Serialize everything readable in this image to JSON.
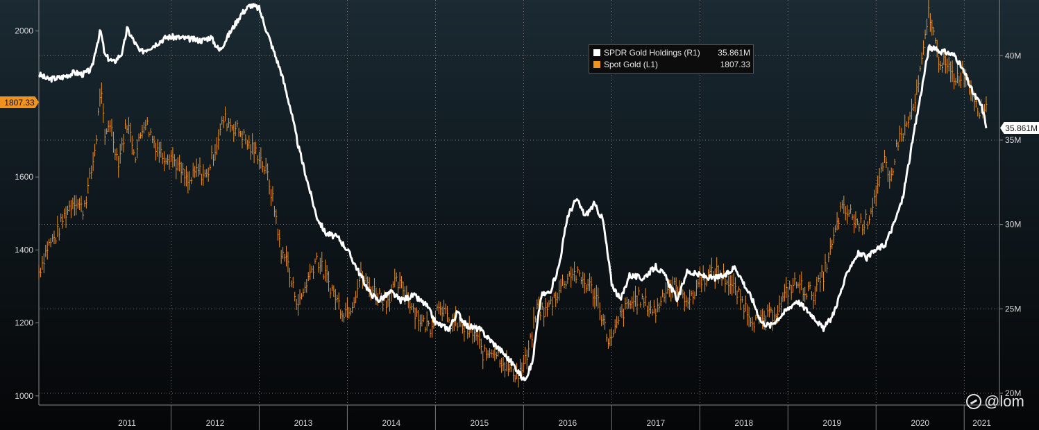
{
  "chart_data": {
    "type": "line",
    "x_label_years": [
      "2011",
      "2012",
      "2013",
      "2014",
      "2015",
      "2016",
      "2017",
      "2018",
      "2019",
      "2020",
      "2021"
    ],
    "left_axis": {
      "ticks": [
        1000,
        1200,
        1400,
        1600,
        2000
      ],
      "tick_labels": [
        "1000",
        "1200",
        "1400",
        "1600",
        "2000"
      ],
      "ylim": [
        975,
        2085
      ]
    },
    "right_axis": {
      "ticks": [
        20,
        25,
        30,
        35,
        40
      ],
      "tick_labels": [
        "20M",
        "25M",
        "30M",
        "35M",
        "40M"
      ],
      "ylim": [
        19.3,
        43.3
      ]
    },
    "series": [
      {
        "name": "SPDR Gold Holdings (R1)",
        "last": "35.861M",
        "axis": "right",
        "color": "#ffffff",
        "points": [
          [
            2010.5,
            38.9
          ],
          [
            2010.6,
            38.6
          ],
          [
            2010.75,
            38.7
          ],
          [
            2010.9,
            39.0
          ],
          [
            2011.0,
            38.9
          ],
          [
            2011.1,
            39.2
          ],
          [
            2011.15,
            40.5
          ],
          [
            2011.2,
            41.5
          ],
          [
            2011.25,
            40.0
          ],
          [
            2011.35,
            39.6
          ],
          [
            2011.45,
            40.2
          ],
          [
            2011.5,
            41.6
          ],
          [
            2011.65,
            40.2
          ],
          [
            2011.8,
            40.6
          ],
          [
            2011.95,
            41.1
          ],
          [
            2012.05,
            41.1
          ],
          [
            2012.2,
            41.0
          ],
          [
            2012.35,
            40.9
          ],
          [
            2012.45,
            41.1
          ],
          [
            2012.55,
            40.3
          ],
          [
            2012.65,
            41.2
          ],
          [
            2012.8,
            42.5
          ],
          [
            2012.9,
            43.0
          ],
          [
            2013.0,
            42.8
          ],
          [
            2013.05,
            42.0
          ],
          [
            2013.15,
            40.5
          ],
          [
            2013.25,
            39.0
          ],
          [
            2013.35,
            37.0
          ],
          [
            2013.45,
            34.5
          ],
          [
            2013.55,
            32.5
          ],
          [
            2013.65,
            30.5
          ],
          [
            2013.75,
            29.5
          ],
          [
            2013.9,
            29.2
          ],
          [
            2014.0,
            28.5
          ],
          [
            2014.1,
            27.5
          ],
          [
            2014.25,
            26.0
          ],
          [
            2014.35,
            25.5
          ],
          [
            2014.5,
            26.0
          ],
          [
            2014.6,
            25.5
          ],
          [
            2014.75,
            25.8
          ],
          [
            2014.9,
            25.2
          ],
          [
            2015.0,
            24.2
          ],
          [
            2015.15,
            23.8
          ],
          [
            2015.25,
            24.8
          ],
          [
            2015.35,
            24.0
          ],
          [
            2015.5,
            23.8
          ],
          [
            2015.65,
            23.0
          ],
          [
            2015.75,
            22.5
          ],
          [
            2015.9,
            21.6
          ],
          [
            2016.0,
            20.8
          ],
          [
            2016.05,
            21.2
          ],
          [
            2016.1,
            21.8
          ],
          [
            2016.2,
            25.8
          ],
          [
            2016.3,
            26.0
          ],
          [
            2016.4,
            27.5
          ],
          [
            2016.5,
            30.5
          ],
          [
            2016.6,
            31.5
          ],
          [
            2016.7,
            30.5
          ],
          [
            2016.8,
            31.2
          ],
          [
            2016.9,
            30.3
          ],
          [
            2017.0,
            26.5
          ],
          [
            2017.1,
            25.5
          ],
          [
            2017.2,
            27.0
          ],
          [
            2017.35,
            26.8
          ],
          [
            2017.5,
            27.5
          ],
          [
            2017.6,
            27.0
          ],
          [
            2017.75,
            25.5
          ],
          [
            2017.85,
            27.2
          ],
          [
            2018.0,
            27.0
          ],
          [
            2018.15,
            26.8
          ],
          [
            2018.3,
            27.0
          ],
          [
            2018.4,
            27.5
          ],
          [
            2018.5,
            26.5
          ],
          [
            2018.6,
            25.5
          ],
          [
            2018.7,
            24.2
          ],
          [
            2018.8,
            24.0
          ],
          [
            2018.9,
            24.5
          ],
          [
            2019.0,
            25.0
          ],
          [
            2019.1,
            25.5
          ],
          [
            2019.2,
            25.0
          ],
          [
            2019.3,
            24.5
          ],
          [
            2019.4,
            23.8
          ],
          [
            2019.5,
            24.5
          ],
          [
            2019.6,
            26.0
          ],
          [
            2019.7,
            27.5
          ],
          [
            2019.8,
            28.3
          ],
          [
            2019.9,
            28.0
          ],
          [
            2020.0,
            28.5
          ],
          [
            2020.1,
            28.8
          ],
          [
            2020.2,
            30.0
          ],
          [
            2020.3,
            31.5
          ],
          [
            2020.4,
            34.5
          ],
          [
            2020.5,
            37.5
          ],
          [
            2020.6,
            40.5
          ],
          [
            2020.7,
            40.3
          ],
          [
            2020.8,
            40.2
          ],
          [
            2020.9,
            40.0
          ],
          [
            2021.0,
            39.0
          ],
          [
            2021.1,
            37.8
          ],
          [
            2021.2,
            37.0
          ],
          [
            2021.25,
            35.861
          ]
        ]
      },
      {
        "name": "Spot Gold (L1)",
        "last": "1807.33",
        "axis": "left",
        "color": "#f0921e",
        "points": [
          [
            2010.5,
            1340
          ],
          [
            2010.6,
            1410
          ],
          [
            2010.7,
            1440
          ],
          [
            2010.8,
            1500
          ],
          [
            2010.9,
            1540
          ],
          [
            2011.0,
            1510
          ],
          [
            2011.05,
            1560
          ],
          [
            2011.1,
            1620
          ],
          [
            2011.15,
            1700
          ],
          [
            2011.2,
            1850
          ],
          [
            2011.25,
            1700
          ],
          [
            2011.3,
            1760
          ],
          [
            2011.4,
            1640
          ],
          [
            2011.5,
            1750
          ],
          [
            2011.6,
            1660
          ],
          [
            2011.7,
            1760
          ],
          [
            2011.8,
            1700
          ],
          [
            2011.9,
            1660
          ],
          [
            2012.0,
            1660
          ],
          [
            2012.1,
            1620
          ],
          [
            2012.2,
            1580
          ],
          [
            2012.3,
            1620
          ],
          [
            2012.4,
            1600
          ],
          [
            2012.5,
            1680
          ],
          [
            2012.6,
            1760
          ],
          [
            2012.7,
            1740
          ],
          [
            2012.8,
            1720
          ],
          [
            2012.9,
            1680
          ],
          [
            2013.0,
            1660
          ],
          [
            2013.1,
            1600
          ],
          [
            2013.2,
            1480
          ],
          [
            2013.25,
            1380
          ],
          [
            2013.3,
            1400
          ],
          [
            2013.35,
            1320
          ],
          [
            2013.45,
            1250
          ],
          [
            2013.55,
            1320
          ],
          [
            2013.65,
            1380
          ],
          [
            2013.75,
            1330
          ],
          [
            2013.85,
            1280
          ],
          [
            2013.95,
            1230
          ],
          [
            2014.05,
            1250
          ],
          [
            2014.15,
            1330
          ],
          [
            2014.25,
            1300
          ],
          [
            2014.35,
            1280
          ],
          [
            2014.45,
            1260
          ],
          [
            2014.55,
            1310
          ],
          [
            2014.65,
            1290
          ],
          [
            2014.75,
            1240
          ],
          [
            2014.85,
            1200
          ],
          [
            2014.95,
            1190
          ],
          [
            2015.05,
            1260
          ],
          [
            2015.15,
            1200
          ],
          [
            2015.25,
            1200
          ],
          [
            2015.35,
            1180
          ],
          [
            2015.45,
            1170
          ],
          [
            2015.55,
            1110
          ],
          [
            2015.65,
            1130
          ],
          [
            2015.75,
            1100
          ],
          [
            2015.85,
            1070
          ],
          [
            2015.95,
            1060
          ],
          [
            2016.05,
            1110
          ],
          [
            2016.15,
            1240
          ],
          [
            2016.25,
            1230
          ],
          [
            2016.35,
            1270
          ],
          [
            2016.45,
            1310
          ],
          [
            2016.55,
            1340
          ],
          [
            2016.65,
            1320
          ],
          [
            2016.75,
            1300
          ],
          [
            2016.85,
            1260
          ],
          [
            2016.95,
            1160
          ],
          [
            2017.0,
            1150
          ],
          [
            2017.1,
            1220
          ],
          [
            2017.2,
            1250
          ],
          [
            2017.3,
            1270
          ],
          [
            2017.4,
            1250
          ],
          [
            2017.5,
            1230
          ],
          [
            2017.6,
            1290
          ],
          [
            2017.7,
            1300
          ],
          [
            2017.8,
            1280
          ],
          [
            2017.9,
            1260
          ],
          [
            2018.0,
            1320
          ],
          [
            2018.1,
            1330
          ],
          [
            2018.2,
            1340
          ],
          [
            2018.3,
            1320
          ],
          [
            2018.4,
            1290
          ],
          [
            2018.5,
            1250
          ],
          [
            2018.6,
            1210
          ],
          [
            2018.7,
            1200
          ],
          [
            2018.8,
            1220
          ],
          [
            2018.9,
            1240
          ],
          [
            2019.0,
            1290
          ],
          [
            2019.1,
            1310
          ],
          [
            2019.2,
            1290
          ],
          [
            2019.3,
            1280
          ],
          [
            2019.4,
            1330
          ],
          [
            2019.5,
            1410
          ],
          [
            2019.6,
            1510
          ],
          [
            2019.7,
            1500
          ],
          [
            2019.8,
            1470
          ],
          [
            2019.9,
            1480
          ],
          [
            2020.0,
            1560
          ],
          [
            2020.1,
            1640
          ],
          [
            2020.15,
            1580
          ],
          [
            2020.25,
            1700
          ],
          [
            2020.35,
            1740
          ],
          [
            2020.45,
            1810
          ],
          [
            2020.55,
            1960
          ],
          [
            2020.6,
            2060
          ],
          [
            2020.7,
            1930
          ],
          [
            2020.8,
            1900
          ],
          [
            2020.9,
            1870
          ],
          [
            2021.0,
            1890
          ],
          [
            2021.1,
            1830
          ],
          [
            2021.2,
            1770
          ],
          [
            2021.25,
            1807.33
          ]
        ]
      }
    ]
  },
  "legend": {
    "holdings_label": "SPDR Gold Holdings (R1)",
    "holdings_value": "35.861M",
    "gold_label": "Spot Gold (L1)",
    "gold_value": "1807.33"
  },
  "tags": {
    "left_value": "1807.33",
    "right_value": "35.861M"
  },
  "watermark": "@lom",
  "colors": {
    "gold": "#f0921e",
    "holdings": "#ffffff",
    "legend_bg": "#0c0c0c"
  }
}
